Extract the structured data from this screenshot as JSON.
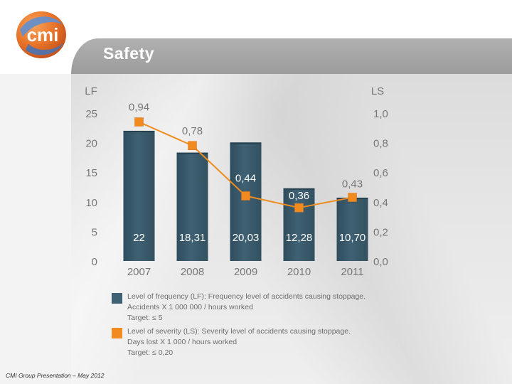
{
  "header": {
    "title": "Safety",
    "logo_text": "cmi"
  },
  "colors": {
    "bar": "#3f6174",
    "line": "#ef8c1e",
    "marker": "#f18a1f",
    "axis_text": "#777777",
    "bar_label": "#ffffff",
    "line_label": "#777777"
  },
  "chart_data": {
    "type": "bar",
    "title": "Safety",
    "categories": [
      "2007",
      "2008",
      "2009",
      "2010",
      "2011"
    ],
    "series": [
      {
        "name": "LF",
        "type": "bar",
        "axis": "left",
        "values": [
          22,
          18.31,
          20.03,
          12.28,
          10.7
        ],
        "labels": [
          "22",
          "18,31",
          "20,03",
          "12,28",
          "10,70"
        ]
      },
      {
        "name": "LS",
        "type": "line",
        "axis": "right",
        "values": [
          0.94,
          0.78,
          0.44,
          0.36,
          0.43
        ],
        "labels": [
          "0,94",
          "0,78",
          "0,44",
          "0,36",
          "0,43"
        ]
      }
    ],
    "y_left": {
      "label": "LF",
      "range": [
        0,
        25
      ],
      "ticks": [
        "0",
        "5",
        "10",
        "15",
        "20",
        "25"
      ]
    },
    "y_right": {
      "label": "LS",
      "range": [
        0,
        1.0
      ],
      "ticks": [
        "0,0",
        "0,2",
        "0,4",
        "0,6",
        "0,8",
        "1,0"
      ]
    },
    "grid": false
  },
  "legend": {
    "frequency": {
      "lines": [
        "Level of frequency (LF): Frequency level of accidents causing stoppage.",
        "Accidents X 1 000 000 / hours worked",
        "Target: ≤ 5"
      ]
    },
    "severity": {
      "lines": [
        "Level of severity (LS): Severity level of accidents causing stoppage.",
        "Days lost X 1 000 / hours worked",
        "Target: ≤ 0,20"
      ]
    }
  },
  "footer": {
    "text": "CMI Group Presentation – May 2012"
  }
}
